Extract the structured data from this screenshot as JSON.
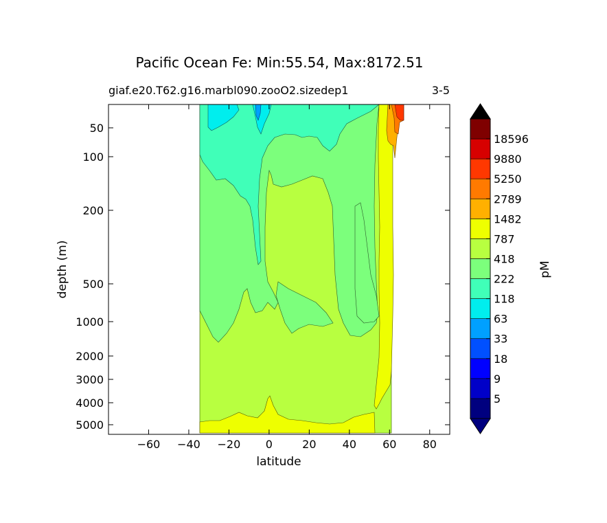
{
  "chart_data": {
    "type": "heatmap",
    "title": "Pacific Ocean Fe: Min:55.54, Max:8172.51",
    "subtitle_left": "giaf.e20.T62.g16.marbl090.zooO2.sizedep1",
    "subtitle_right": "3-5",
    "xlabel": "latitude",
    "ylabel": "depth (m)",
    "xlim": [
      -80,
      90
    ],
    "xticks": [
      -60,
      -40,
      -20,
      0,
      20,
      40,
      60,
      80
    ],
    "xtick_labels": [
      "−60",
      "−40",
      "−20",
      "0",
      "20",
      "40",
      "60",
      "80"
    ],
    "yticks": [
      50,
      100,
      200,
      500,
      1000,
      2000,
      3000,
      4000,
      5000
    ],
    "ytick_labels": [
      "50",
      "100",
      "200",
      "500",
      "1000",
      "2000",
      "3000",
      "4000",
      "5000"
    ],
    "colorbar": {
      "label": "pM",
      "levels": [
        "5",
        "9",
        "18",
        "33",
        "63",
        "118",
        "222",
        "418",
        "787",
        "1482",
        "2789",
        "5250",
        "9880",
        "18596"
      ],
      "colors": [
        "#00007f",
        "#0000c8",
        "#0000ff",
        "#0050ff",
        "#00a0ff",
        "#00eeee",
        "#40ffb8",
        "#7cff7c",
        "#b8ff40",
        "#eeff00",
        "#ffb000",
        "#ff7a00",
        "#ff3800",
        "#d70000",
        "#7f0000"
      ],
      "under_color": "#00007f",
      "over_color": "#000000"
    },
    "data_extent": {
      "lat_min": -34,
      "lat_max": 66
    },
    "regions": [
      {
        "level": "5250",
        "note": "surface band near 60-66N"
      },
      {
        "level": "1482",
        "note": "high-latitude column ~53-63N and bottom layer"
      },
      {
        "level": "787",
        "note": "deep water below ~1000 m"
      },
      {
        "level": "418",
        "note": "intermediate water"
      },
      {
        "level": "222",
        "note": "upper ocean"
      },
      {
        "level": "118",
        "note": "surface patches"
      }
    ]
  }
}
